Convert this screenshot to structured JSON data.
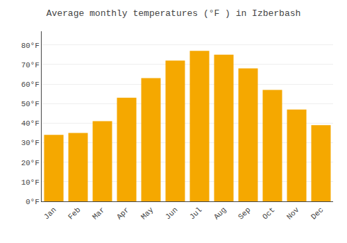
{
  "chart_data": {
    "type": "bar",
    "title": "Average monthly temperatures (°F ) in Izberbash",
    "categories": [
      "Jan",
      "Feb",
      "Mar",
      "Apr",
      "May",
      "Jun",
      "Jul",
      "Aug",
      "Sep",
      "Oct",
      "Nov",
      "Dec"
    ],
    "values": [
      34,
      35,
      41,
      53,
      63,
      72,
      77,
      75,
      68,
      57,
      47,
      39
    ],
    "color": "#F5A800",
    "ylim": [
      0,
      87
    ],
    "yticks": [
      {
        "value": 0,
        "label": "0°F"
      },
      {
        "value": 10,
        "label": "10°F"
      },
      {
        "value": 20,
        "label": "20°F"
      },
      {
        "value": 30,
        "label": "30°F"
      },
      {
        "value": 40,
        "label": "40°F"
      },
      {
        "value": 50,
        "label": "50°F"
      },
      {
        "value": 60,
        "label": "60°F"
      },
      {
        "value": 70,
        "label": "70°F"
      },
      {
        "value": 80,
        "label": "80°F"
      }
    ],
    "grid": true
  }
}
